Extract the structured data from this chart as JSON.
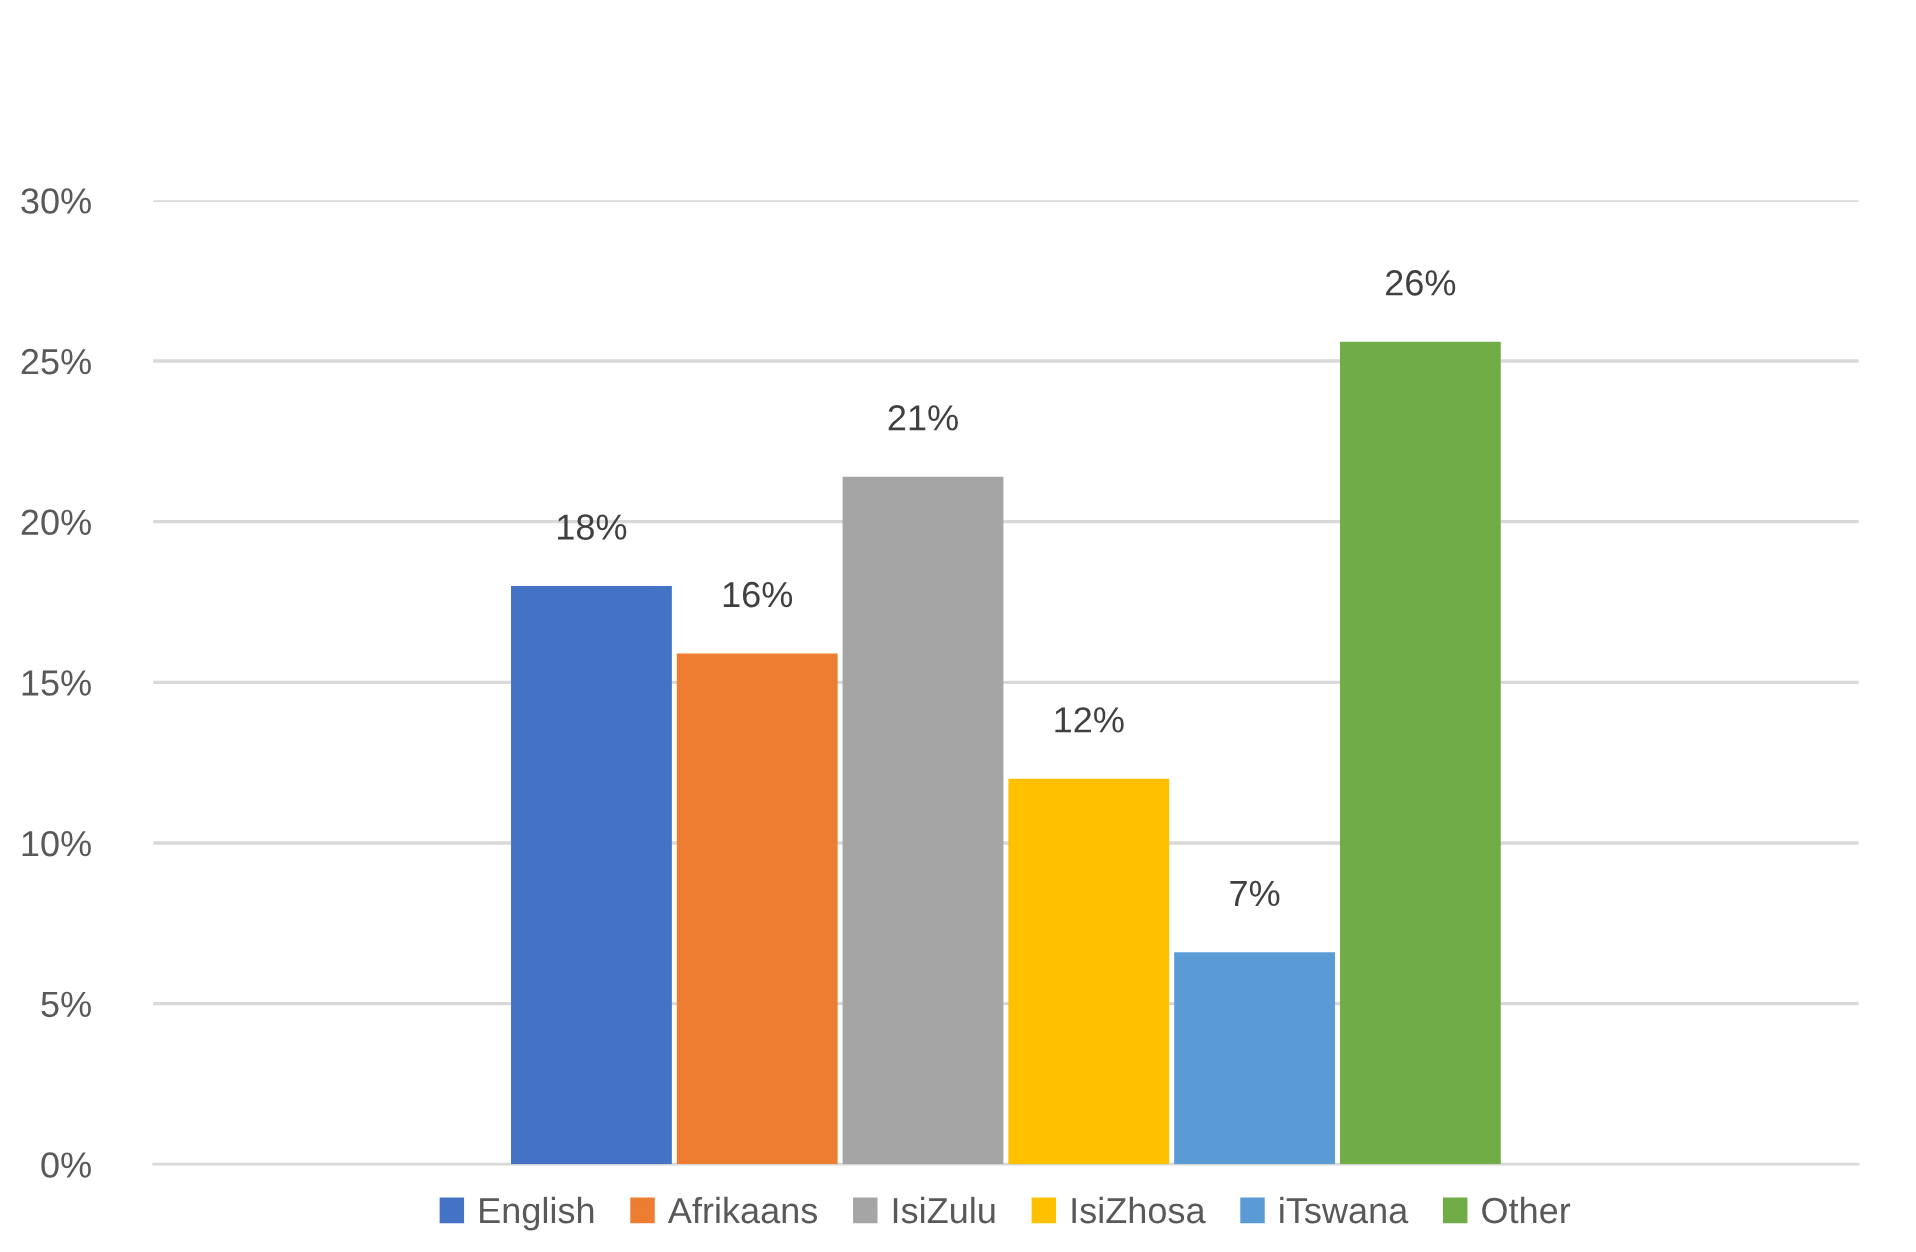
{
  "chart_data": {
    "type": "bar",
    "categories": [
      null
    ],
    "series": [
      {
        "name": "English",
        "color": "#4472c4",
        "values": [
          18.0
        ],
        "value_labels": [
          "18%"
        ]
      },
      {
        "name": "Afrikaans",
        "color": "#ed7d31",
        "values": [
          15.9
        ],
        "value_labels": [
          "16%"
        ]
      },
      {
        "name": "IsiZulu",
        "color": "#a5a5a5",
        "values": [
          21.4
        ],
        "value_labels": [
          "21%"
        ]
      },
      {
        "name": "IsiZhosa",
        "color": "#ffc000",
        "values": [
          12.0
        ],
        "value_labels": [
          "12%"
        ]
      },
      {
        "name": "iTswana",
        "color": "#5b9bd5",
        "values": [
          6.6
        ],
        "value_labels": [
          "7%"
        ]
      },
      {
        "name": "Other",
        "color": "#70ad47",
        "values": [
          25.6
        ],
        "value_labels": [
          "26%"
        ]
      }
    ],
    "ylim": [
      0,
      30
    ],
    "yticks": [
      {
        "value": 0,
        "label": "0%"
      },
      {
        "value": 5,
        "label": "5%"
      },
      {
        "value": 10,
        "label": "10%"
      },
      {
        "value": 15,
        "label": "15%"
      },
      {
        "value": 20,
        "label": "20%"
      },
      {
        "value": 25,
        "label": "25%"
      },
      {
        "value": 30,
        "label": "30%"
      }
    ],
    "grid": "y",
    "legend": "bottom"
  }
}
